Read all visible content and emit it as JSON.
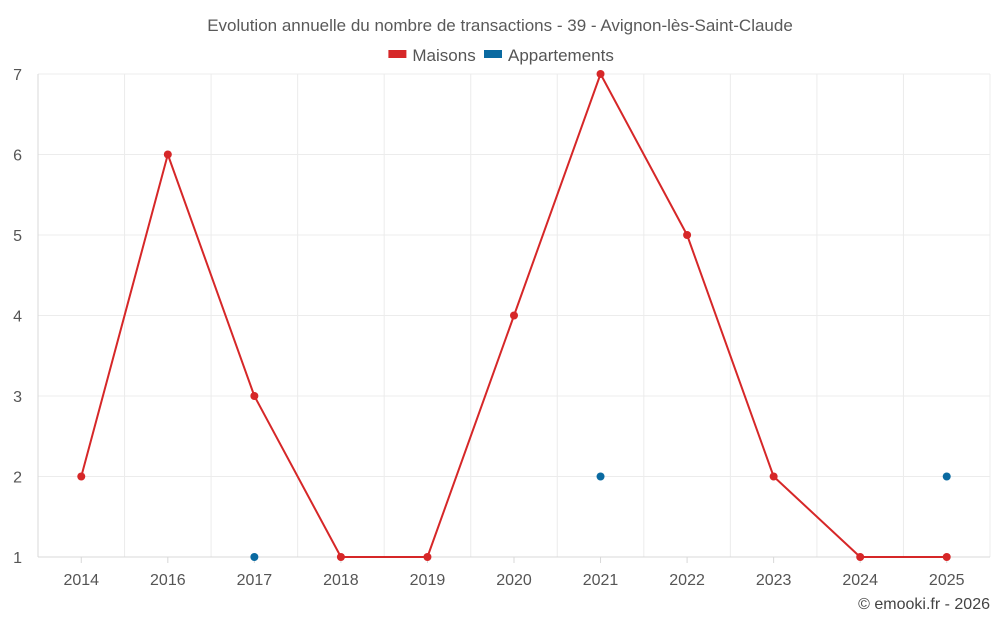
{
  "chart_data": {
    "type": "line",
    "title": "Evolution annuelle du nombre de transactions - 39 - Avignon-lès-Saint-Claude",
    "categories": [
      "2014",
      "2016",
      "2017",
      "2018",
      "2019",
      "2020",
      "2021",
      "2022",
      "2023",
      "2024",
      "2025"
    ],
    "series": [
      {
        "name": "Maisons",
        "color": "#d62728",
        "style": "line+markers",
        "values": [
          2,
          6,
          3,
          1,
          1,
          4,
          7,
          5,
          2,
          1,
          1
        ]
      },
      {
        "name": "Appartements",
        "color": "#0a6aa1",
        "style": "markers",
        "values": [
          null,
          null,
          1,
          null,
          null,
          null,
          2,
          null,
          null,
          null,
          2
        ]
      }
    ],
    "ylim": [
      1,
      7
    ],
    "yticks": [
      1,
      2,
      3,
      4,
      5,
      6,
      7
    ],
    "xlabel": "",
    "ylabel": "",
    "grid": true,
    "legend_position": "top-center"
  },
  "credit": "© emooki.fr - 2026"
}
